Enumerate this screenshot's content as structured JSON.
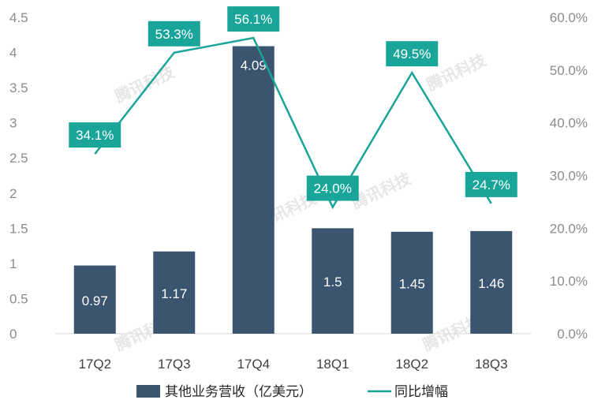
{
  "chart_data": {
    "type": "bar",
    "categories": [
      "17Q2",
      "17Q3",
      "17Q4",
      "18Q1",
      "18Q2",
      "18Q3"
    ],
    "series": [
      {
        "name": "其他业务营收（亿美元）",
        "type": "bar",
        "axis": "left",
        "values": [
          0.97,
          1.17,
          4.09,
          1.5,
          1.45,
          1.46
        ],
        "labels": [
          "0.97",
          "1.17",
          "4.09",
          "1.5",
          "1.45",
          "1.46"
        ],
        "color": "#3b5570"
      },
      {
        "name": "同比增幅",
        "type": "line",
        "axis": "right",
        "values": [
          34.1,
          53.3,
          56.1,
          24.0,
          49.5,
          24.7
        ],
        "labels": [
          "34.1%",
          "53.3%",
          "56.1%",
          "24.0%",
          "49.5%",
          "24.7%"
        ],
        "color": "#1aa59a"
      }
    ],
    "y_left": {
      "min": 0,
      "max": 4.5,
      "ticks": [
        "0",
        "0.5",
        "1",
        "1.5",
        "2",
        "2.5",
        "3",
        "3.5",
        "4",
        "4.5"
      ]
    },
    "y_right": {
      "min": 0,
      "max": 60,
      "ticks": [
        "0.0%",
        "10.0%",
        "20.0%",
        "30.0%",
        "40.0%",
        "50.0%",
        "60.0%"
      ]
    },
    "grid": false,
    "legend_position": "bottom",
    "watermark_text": "腾讯科技"
  }
}
